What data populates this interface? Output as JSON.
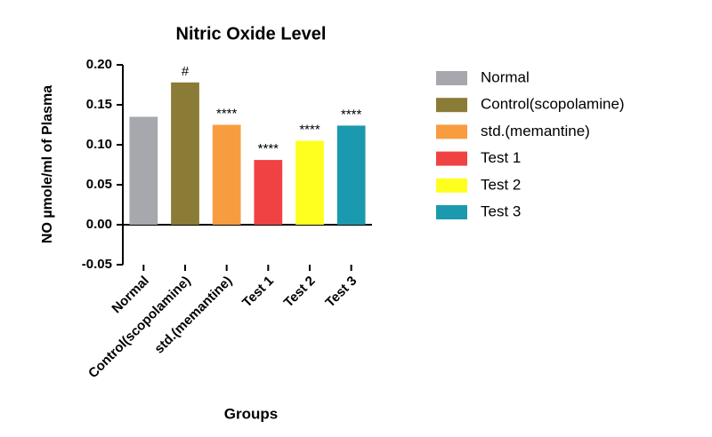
{
  "chart_data": {
    "type": "bar",
    "title": "Nitric Oxide Level",
    "x_label": "Groups",
    "y_label": "NO µmole/ml of Plasma",
    "categories": [
      "Normal",
      "Control(scopolamine)",
      "std.(memantine)",
      "Test 1",
      "Test 2",
      "Test 3"
    ],
    "values": [
      0.135,
      0.178,
      0.125,
      0.081,
      0.105,
      0.124
    ],
    "colors": [
      "#a7a7ae",
      "#8a7b36",
      "#f89c40",
      "#f04242",
      "#ffff1f",
      "#1b99ae"
    ],
    "annotations": [
      null,
      "#",
      "****",
      "****",
      "****",
      "****"
    ],
    "ylim": [
      -0.05,
      0.2
    ],
    "yticks": [
      -0.05,
      {
        "value": 0,
        "label": "0.00"
      },
      0.05,
      {
        "value": 0.1,
        "label": "0.10"
      },
      0.15,
      {
        "value": 0.2,
        "label": "0.20"
      }
    ],
    "legend": "right"
  }
}
